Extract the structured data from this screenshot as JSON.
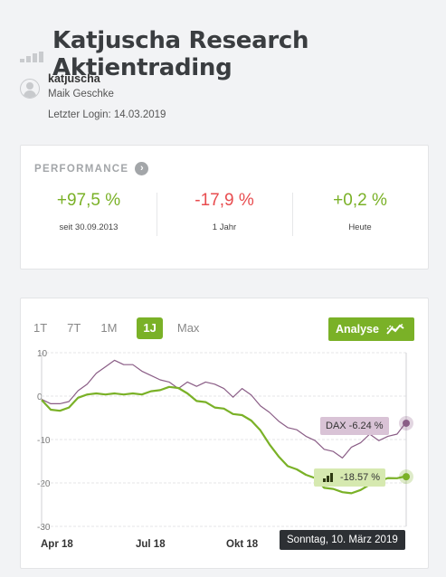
{
  "header": {
    "title": "Katjuscha Research Aktientrading"
  },
  "user": {
    "username": "katjuscha",
    "realname": "Maik Geschke",
    "last_login": "Letzter Login: 14.03.2019"
  },
  "performance": {
    "title": "PERFORMANCE",
    "items": [
      {
        "value": "+97,5 %",
        "label": "seit 30.09.2013",
        "tone": "positive"
      },
      {
        "value": "-17,9 %",
        "label": "1 Jahr",
        "tone": "negative"
      },
      {
        "value": "+0,2 %",
        "label": "Heute",
        "tone": "positive"
      }
    ]
  },
  "chart_tabs": [
    "1T",
    "7T",
    "1M",
    "1J",
    "Max"
  ],
  "active_tab": "1J",
  "analyse_label": "Analyse",
  "tooltip": "Sonntag, 10. März 2019",
  "dax_badge": "DAX -6.24 %",
  "portfolio_badge": "-18.57 %",
  "colors": {
    "accent": "#7ab127",
    "dax": "#8a5d86",
    "negative": "#e84c4f"
  },
  "chart_data": {
    "type": "line",
    "y_ticks": [
      "10",
      "0",
      "-10",
      "-20",
      "-30"
    ],
    "ylim": [
      -30,
      10
    ],
    "x_ticks": [
      "Apr 18",
      "Jul 18",
      "Okt 18"
    ],
    "series": [
      {
        "name": "DAX",
        "color": "#8a5d86",
        "values": [
          -1,
          -1.5,
          -2,
          -1,
          1,
          3,
          5,
          7,
          8,
          7.5,
          7,
          6,
          4.5,
          4,
          3,
          2,
          3,
          2.5,
          3,
          3,
          1.5,
          0,
          1.5,
          0.5,
          -2.5,
          -3.5,
          -6,
          -7,
          -8,
          -9,
          -10.5,
          -12,
          -13,
          -14,
          -12,
          -10.5,
          -9,
          -10,
          -9.5,
          -8.5,
          -6.24
        ]
      },
      {
        "values": [
          -1,
          -3,
          -3.5,
          -2.5,
          -0.5,
          0.5,
          0.5,
          0.5,
          0.5,
          0.5,
          0.5,
          0.5,
          1,
          1.5,
          2,
          2,
          0.5,
          -1,
          -1.5,
          -2.5,
          -3,
          -4,
          -4.5,
          -5.5,
          -8,
          -11,
          -14,
          -16,
          -17,
          -18,
          -19,
          -21,
          -21.5,
          -22,
          -22.5,
          -21.5,
          -20.5,
          -19.5,
          -19,
          -18.8,
          -18.57
        ]
      }
    ]
  }
}
